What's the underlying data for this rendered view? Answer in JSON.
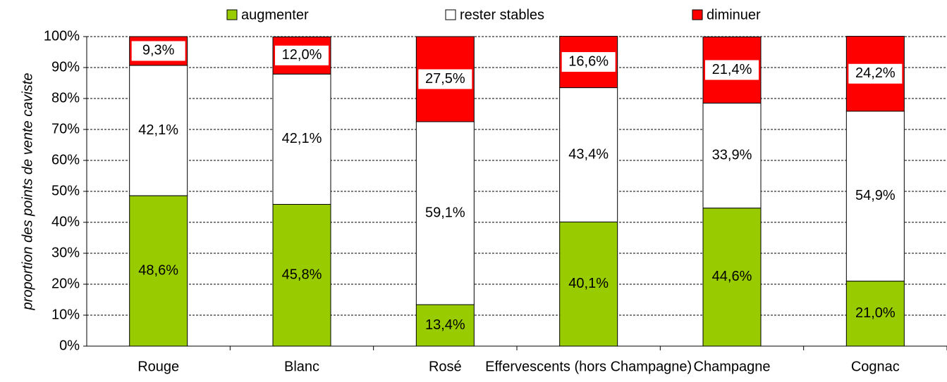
{
  "chart_data": {
    "type": "stacked_bar",
    "y_label": "proportion des points de vente caviste",
    "categories": [
      "Rouge",
      "Blanc",
      "Rosé",
      "Effervescents (hors Champagne)",
      "Champagne",
      "Cognac"
    ],
    "series": [
      {
        "name": "augmenter",
        "color": "#99cc00",
        "values": [
          48.6,
          45.8,
          13.4,
          40.1,
          44.6,
          21.0
        ],
        "value_labels": [
          "48,6%",
          "45,8%",
          "13,4%",
          "40,1%",
          "44,6%",
          "21,0%"
        ]
      },
      {
        "name": "rester stables",
        "color": "#ffffff",
        "values": [
          42.1,
          42.1,
          59.1,
          43.4,
          33.9,
          54.9
        ],
        "value_labels": [
          "42,1%",
          "42,1%",
          "59,1%",
          "43,4%",
          "33,9%",
          "54,9%"
        ]
      },
      {
        "name": "diminuer",
        "color": "#ff0000",
        "values": [
          9.3,
          12.0,
          27.5,
          16.6,
          21.4,
          24.2
        ],
        "value_labels": [
          "9,3%",
          "12,0%",
          "27,5%",
          "16,6%",
          "21,4%",
          "24,2%"
        ]
      }
    ],
    "ylim": [
      0,
      100
    ],
    "yticks": [
      {
        "value": 0,
        "label": "0%"
      },
      {
        "value": 10,
        "label": "10%"
      },
      {
        "value": 20,
        "label": "20%"
      },
      {
        "value": 30,
        "label": "30%"
      },
      {
        "value": 40,
        "label": "40%"
      },
      {
        "value": 50,
        "label": "50%"
      },
      {
        "value": 60,
        "label": "60%"
      },
      {
        "value": 70,
        "label": "70%"
      },
      {
        "value": 80,
        "label": "80%"
      },
      {
        "value": 90,
        "label": "90%"
      },
      {
        "value": 100,
        "label": "100%"
      }
    ],
    "grid": true
  }
}
